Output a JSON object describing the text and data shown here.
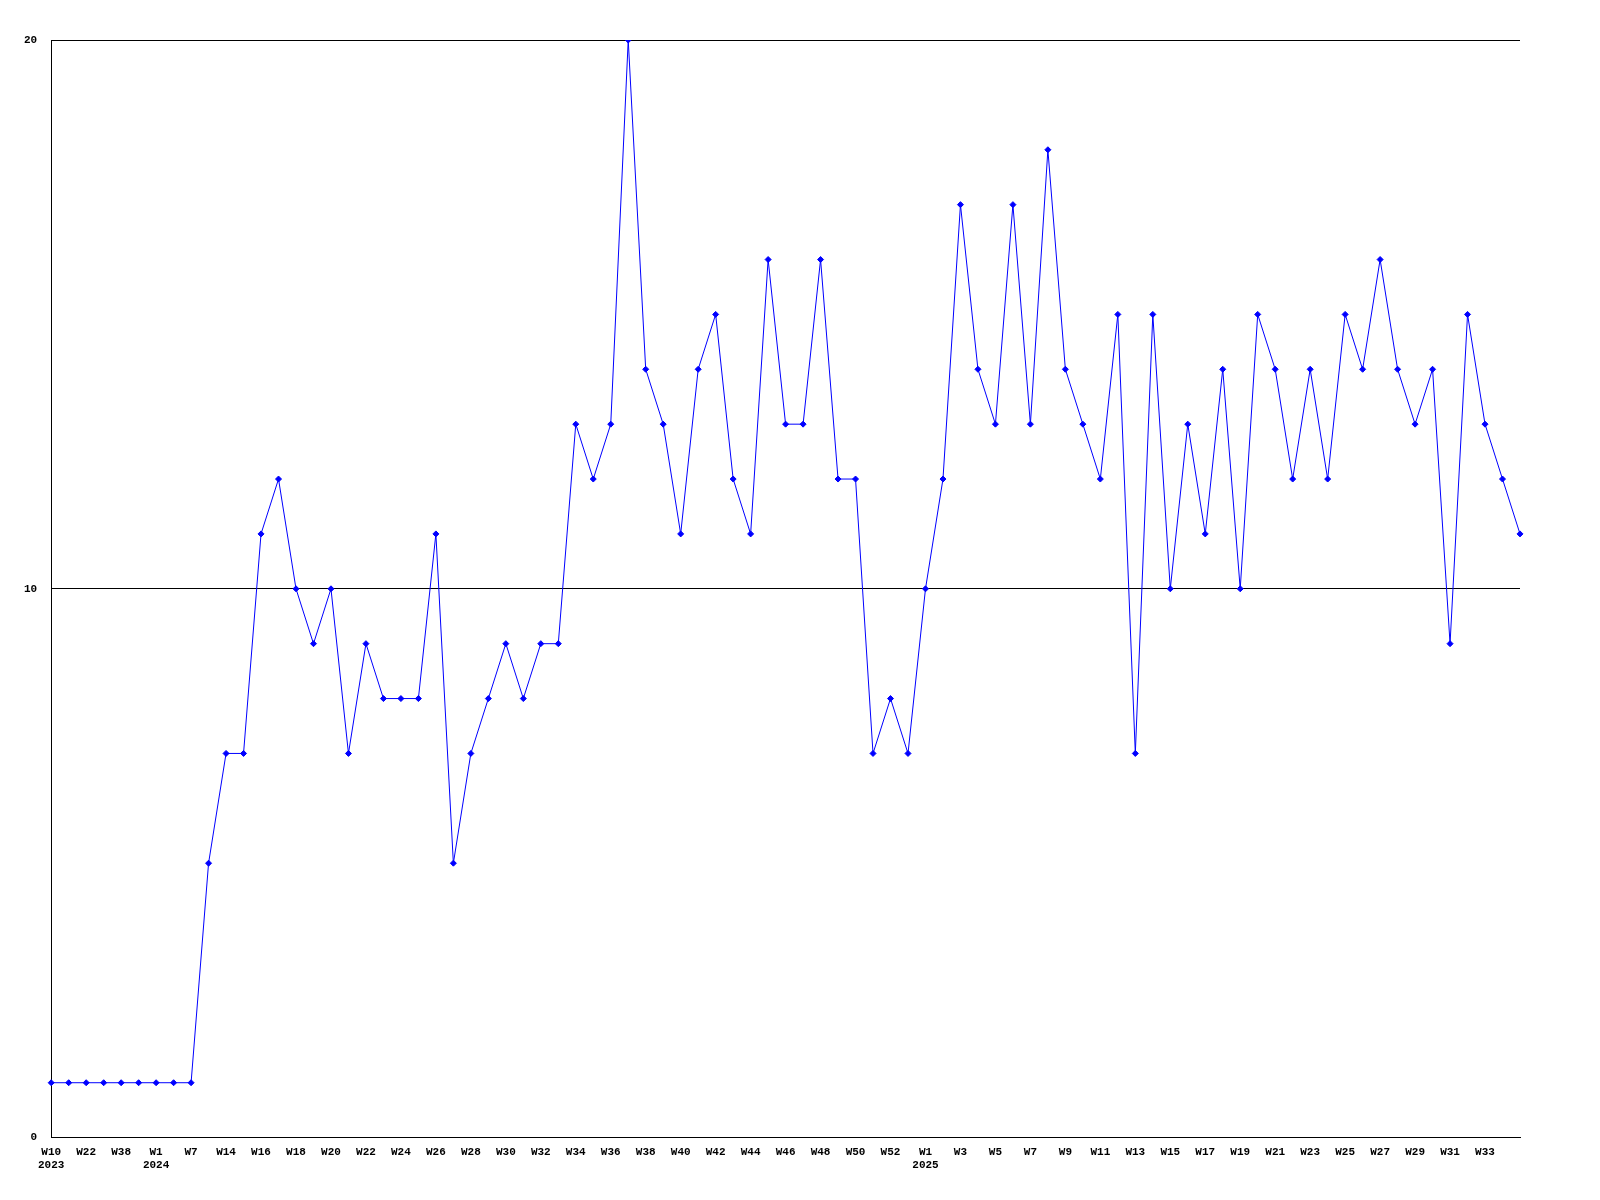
{
  "chart_data": {
    "type": "line",
    "categories": [
      "W10\n2023",
      null,
      "W22",
      null,
      "W38",
      null,
      "W1\n2024",
      null,
      "W7",
      null,
      "W14",
      null,
      "W16",
      null,
      "W18",
      null,
      "W20",
      null,
      "W22",
      null,
      "W24",
      null,
      "W26",
      null,
      "W28",
      null,
      "W30",
      null,
      "W32",
      null,
      "W34",
      null,
      "W36",
      null,
      "W38",
      null,
      "W40",
      null,
      "W42",
      null,
      "W44",
      null,
      "W46",
      null,
      "W48",
      null,
      "W50",
      null,
      "W52",
      null,
      "W1\n2025",
      null,
      "W3",
      null,
      "W5",
      null,
      "W7",
      null,
      "W9",
      null,
      "W11",
      null,
      "W13",
      null,
      "W15",
      null,
      "W17",
      null,
      "W19",
      null,
      "W21",
      null,
      "W23",
      null,
      "W25",
      null,
      "W27",
      null,
      "W29",
      null,
      "W31",
      null,
      "W33",
      null,
      null
    ],
    "series": [
      {
        "color": "#0000ff",
        "values": [
          1,
          1,
          1,
          1,
          1,
          1,
          1,
          1,
          1,
          5,
          7,
          7,
          11,
          12,
          10,
          9,
          10,
          7,
          9,
          8,
          8,
          8,
          11,
          5,
          7,
          8,
          9,
          8,
          9,
          9,
          13,
          12,
          13,
          20,
          14,
          13,
          11,
          14,
          15,
          12,
          11,
          16,
          13,
          13,
          16,
          12,
          12,
          7,
          8,
          7,
          10,
          12,
          17,
          14,
          13,
          17,
          13,
          18,
          14,
          13,
          12,
          15,
          7,
          15,
          10,
          13,
          11,
          14,
          10,
          15,
          14,
          12,
          14,
          12,
          15,
          14,
          16,
          14,
          13,
          14,
          9,
          15,
          13,
          12,
          11
        ]
      }
    ],
    "ylim": [
      0,
      20
    ],
    "yticks": [
      0,
      10,
      20
    ],
    "grid": "y",
    "marker": "diamond",
    "line_style": "solid",
    "legend": false
  }
}
